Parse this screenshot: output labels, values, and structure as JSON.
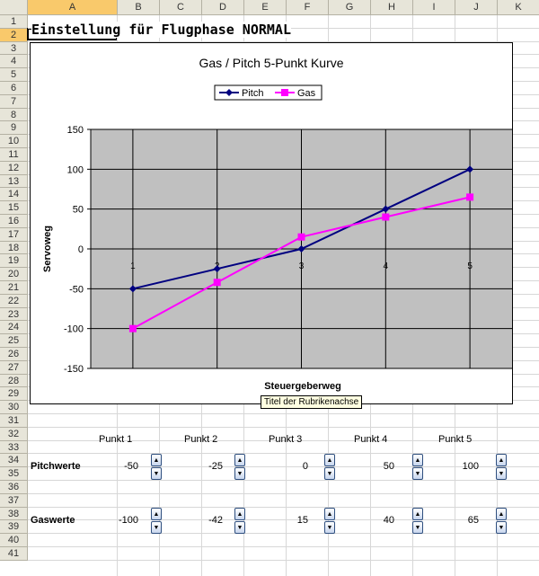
{
  "sheet": {
    "columns": [
      "A",
      "B",
      "C",
      "D",
      "E",
      "F",
      "G",
      "H",
      "I",
      "J",
      "K"
    ],
    "rows": [
      "1",
      "2",
      "3",
      "4",
      "5",
      "6",
      "7",
      "8",
      "9",
      "10",
      "11",
      "12",
      "13",
      "14",
      "15",
      "16",
      "17",
      "18",
      "19",
      "20",
      "21",
      "22",
      "23",
      "24",
      "25",
      "26",
      "27",
      "28",
      "29",
      "30",
      "31",
      "32",
      "33",
      "34",
      "35",
      "36",
      "37",
      "38",
      "39",
      "40",
      "41"
    ],
    "title": "Einstellung für Flugphase NORMAL"
  },
  "chart_data": {
    "type": "line",
    "title": "Gas / Pitch 5-Punkt Kurve",
    "xlabel": "Steuergeberweg",
    "ylabel": "Servoweg",
    "categories": [
      "1",
      "2",
      "3",
      "4",
      "5"
    ],
    "ylim": [
      -150,
      150
    ],
    "yticks": [
      "150",
      "100",
      "50",
      "0",
      "-50",
      "-100",
      "-150"
    ],
    "series": [
      {
        "name": "Pitch",
        "values": [
          -50,
          -25,
          0,
          50,
          100
        ],
        "color": "#000080"
      },
      {
        "name": "Gas",
        "values": [
          -100,
          -42,
          15,
          40,
          65
        ],
        "color": "#ff00ff"
      }
    ],
    "plot_bg": "#c0c0c0",
    "tooltip": "Titel der Rubrikenachse"
  },
  "table": {
    "points": [
      "Punkt 1",
      "Punkt 2",
      "Punkt 3",
      "Punkt 4",
      "Punkt 5"
    ],
    "pitch_label": "Pitchwerte",
    "gas_label": "Gaswerte",
    "pitch_values": [
      "-50",
      "-25",
      "0",
      "50",
      "100"
    ],
    "gas_values": [
      "-100",
      "-42",
      "15",
      "40",
      "65"
    ]
  },
  "colors": {
    "header_bg": "#e7e5d9",
    "selected_header": "#f9c96b",
    "spin_border": "#2f4f7f"
  }
}
